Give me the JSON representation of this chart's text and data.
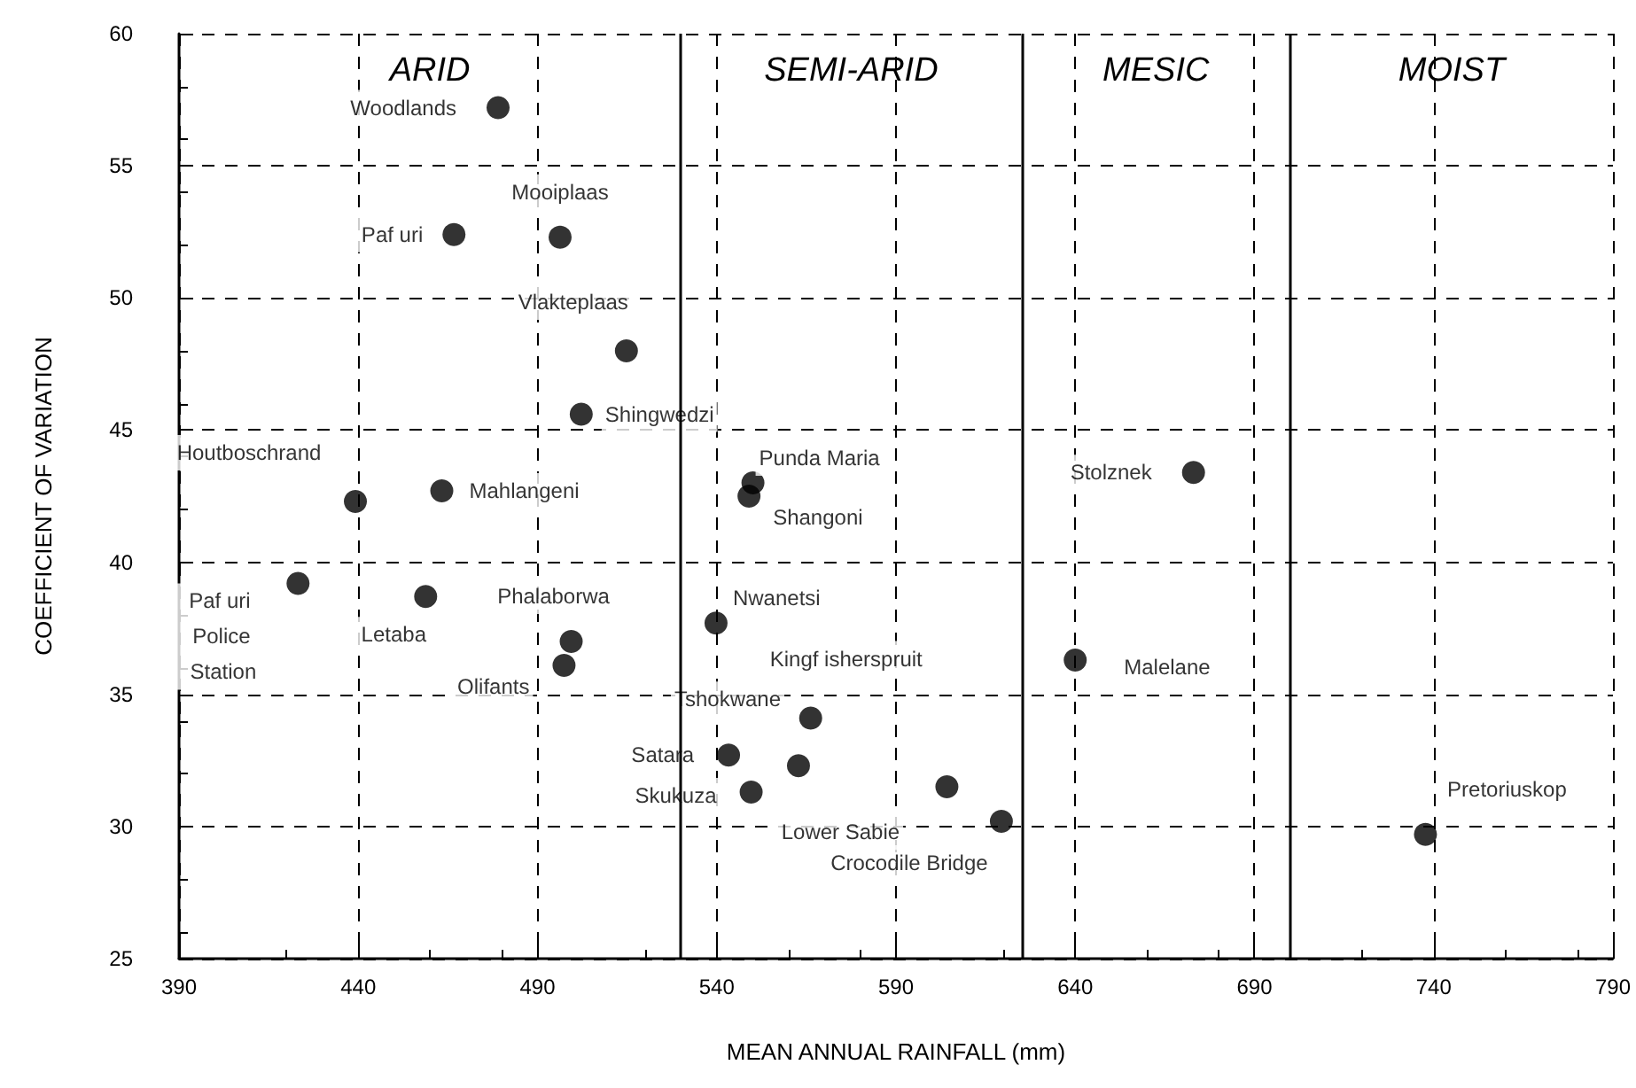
{
  "chart_data": {
    "type": "scatter",
    "xlabel": "MEAN ANNUAL RAINFALL (mm)",
    "ylabel": "COEFFICIENT OF VARIATION",
    "x": [
      479,
      466.7,
      496.3,
      514.8,
      502.2,
      439.2,
      463.3,
      550.1,
      549,
      423.2,
      458.8,
      499.4,
      497.4,
      539.8,
      566.2,
      543.3,
      562.8,
      549.6,
      604.2,
      619.4,
      673,
      640,
      737.7
    ],
    "series": [
      {
        "color": "#000000",
        "values": [
          57.2,
          52.4,
          52.3,
          48.0,
          45.6,
          42.3,
          42.7,
          43.0,
          42.5,
          39.2,
          38.7,
          37.0,
          36.1,
          37.7,
          34.1,
          32.7,
          32.3,
          31.3,
          31.5,
          30.2,
          43.4,
          36.3,
          29.7
        ],
        "value_labels": [
          "Woodlands",
          "Paf uri",
          "Mooiplaas",
          "Vlakteplaas",
          "Shingwedzi",
          "Houtboschrand",
          "Mahlangeni",
          "Punda Maria",
          "Shangoni",
          "Paf uri Police Station",
          "Letaba",
          "Phalaborwa",
          "Olifants",
          "Nwanetsi",
          "Kingf isherspruit",
          "Satara",
          "Tshokwane",
          "Skukuza",
          "Lower Sabie",
          "Crocodile Bridge",
          "Stolznek",
          "Malelane",
          "Pretoriuskop"
        ]
      }
    ],
    "marker": "circle",
    "xlim": [
      390,
      790
    ],
    "xticks": [
      390,
      440,
      490,
      540,
      590,
      640,
      690,
      740,
      790
    ],
    "ylim": [
      25,
      60
    ],
    "yticks": [
      25,
      30,
      35,
      40,
      45,
      50,
      55,
      60
    ],
    "grid": true,
    "ref_lines": [
      {
        "axis": "x",
        "value": 530,
        "color": "#000000",
        "line_style": "solid"
      },
      {
        "axis": "x",
        "value": 625,
        "color": "#000000",
        "line_style": "solid"
      },
      {
        "axis": "x",
        "value": 700,
        "color": "#000000",
        "line_style": "solid"
      }
    ],
    "annotations": [
      "ARID",
      "SEMI-ARID",
      "MESIC",
      "MOIST"
    ]
  }
}
